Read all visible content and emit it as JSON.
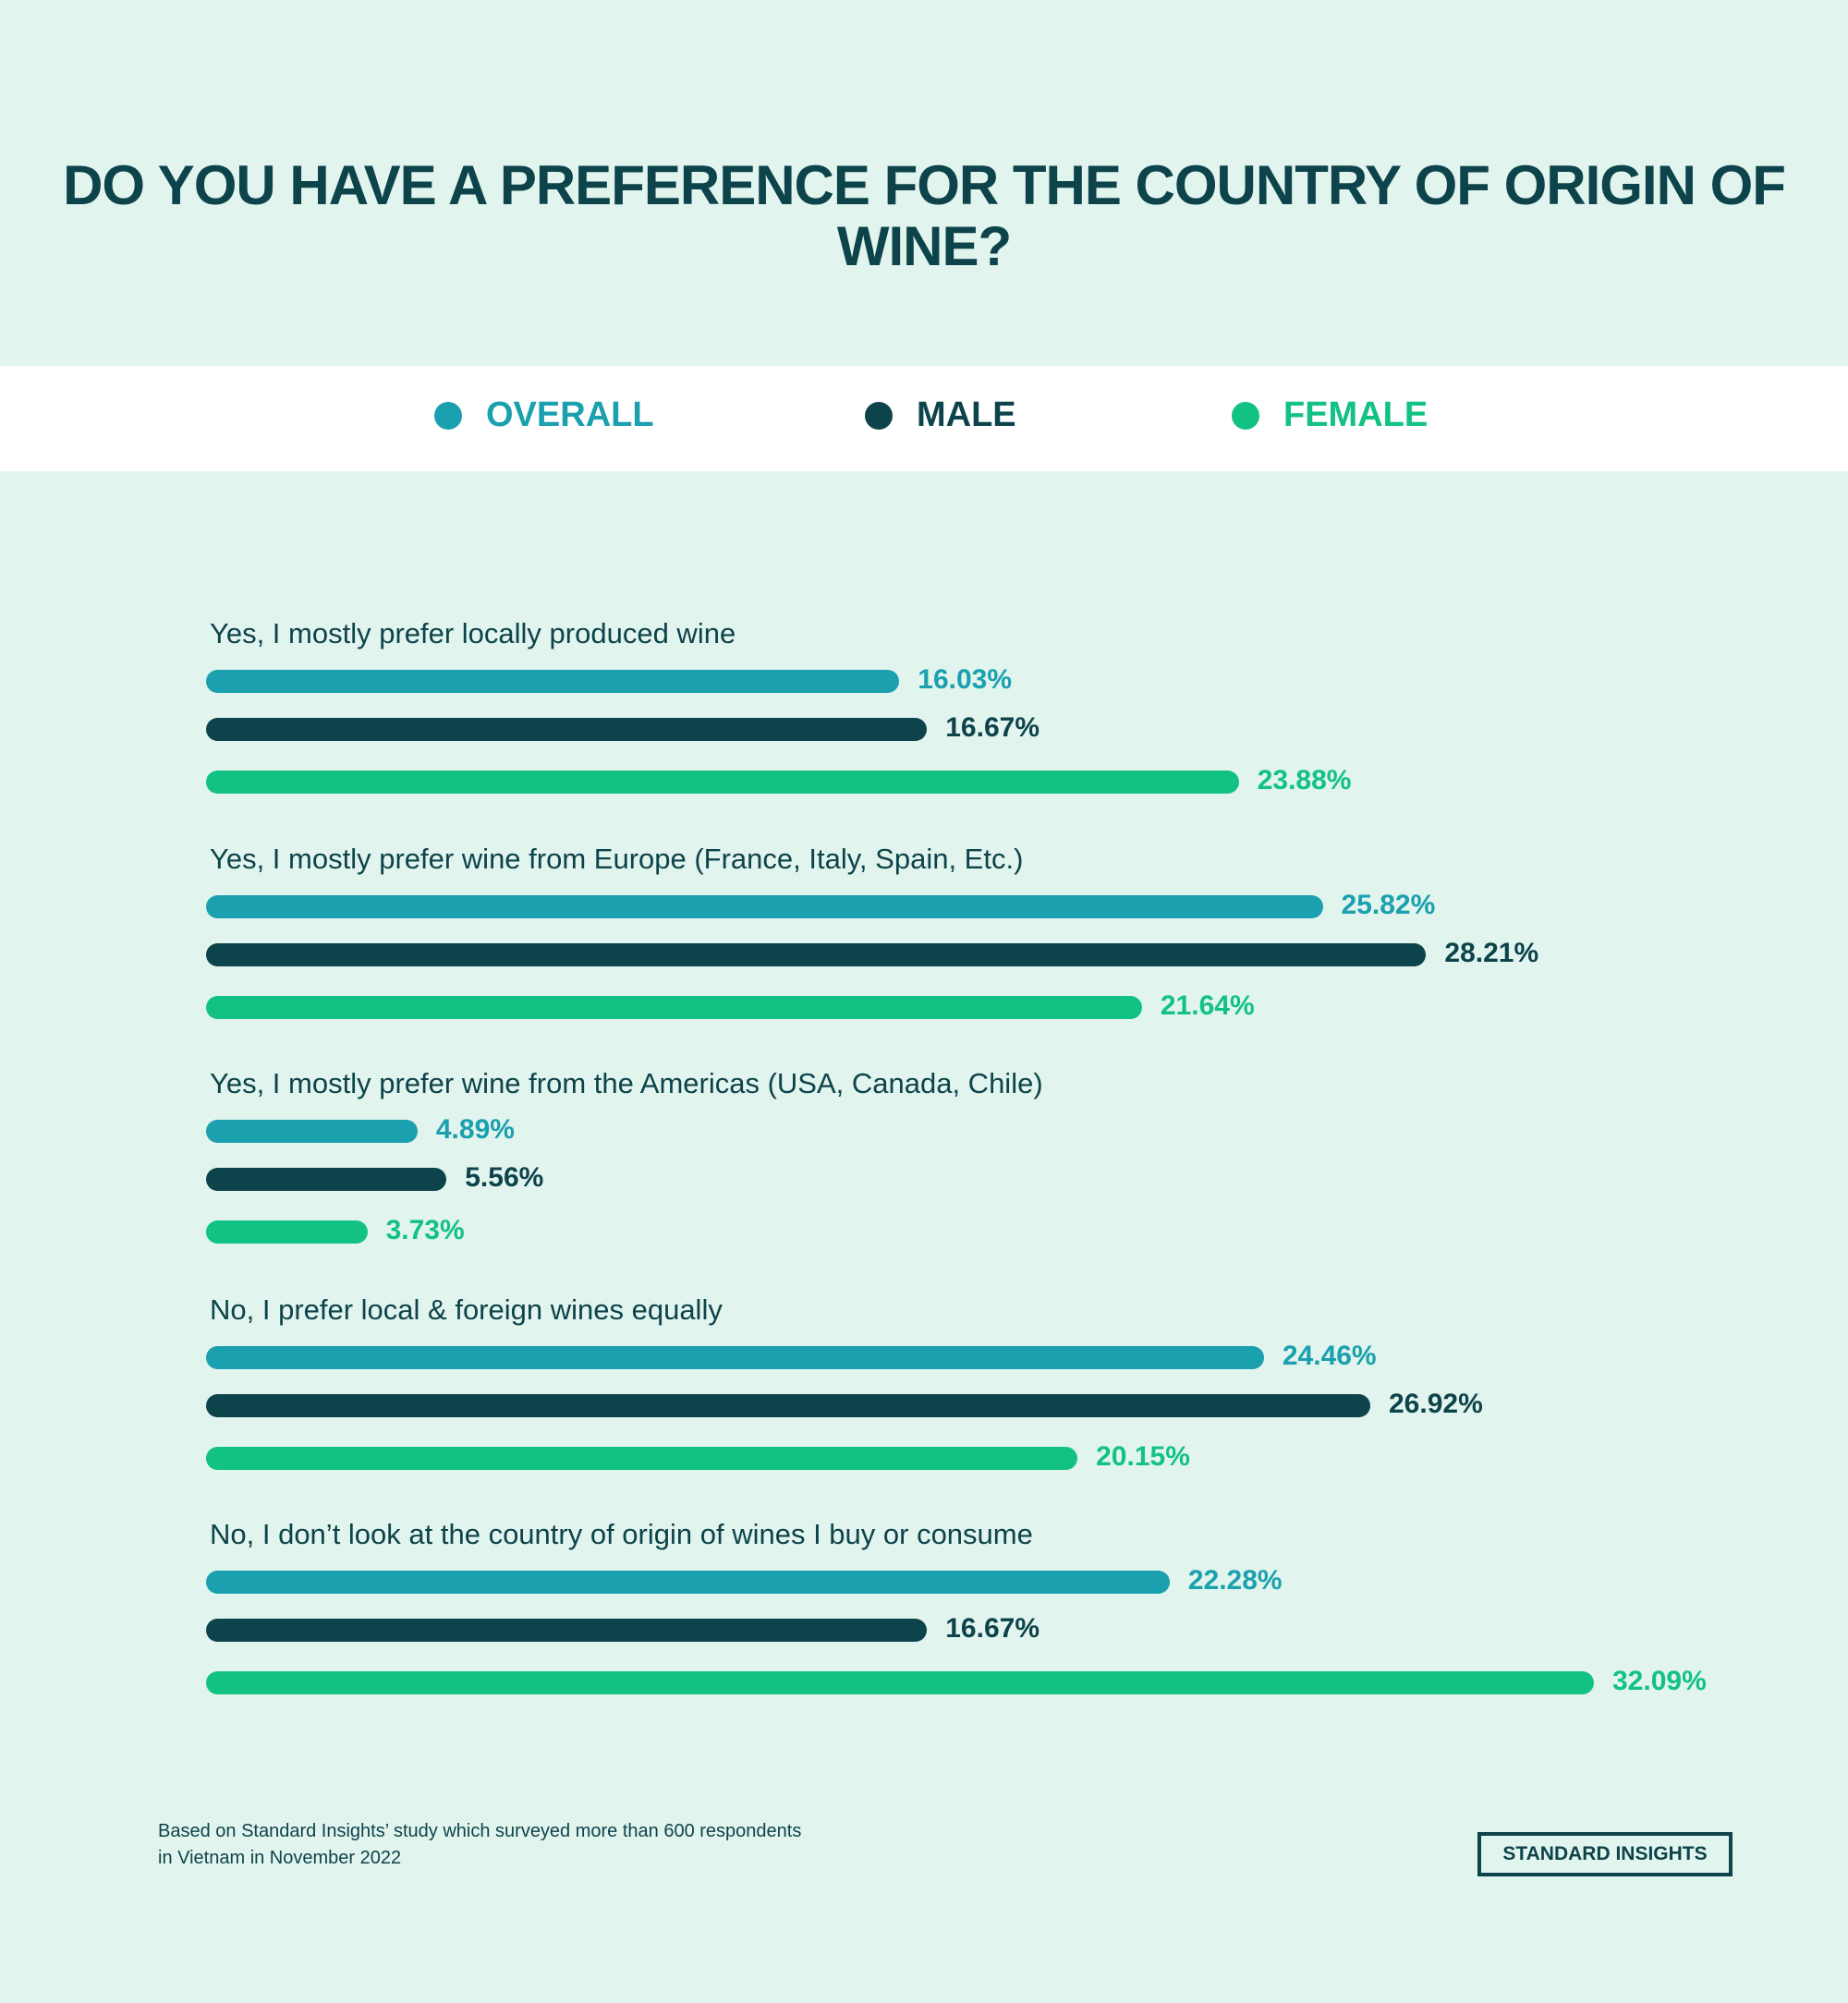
{
  "chart_data": {
    "type": "bar",
    "orientation": "horizontal",
    "title": "DO YOU HAVE A PREFERENCE FOR THE COUNTRY OF ORIGIN OF WINE?",
    "categories": [
      "Yes, I mostly prefer locally produced wine",
      "Yes, I mostly prefer wine from Europe (France, Italy, Spain, Etc.)",
      "Yes, I mostly prefer wine from the Americas (USA, Canada, Chile)",
      "No, I prefer local & foreign wines equally",
      "No, I don’t look at the country of origin of wines I buy or consume"
    ],
    "series": [
      {
        "name": "OVERALL",
        "color": "#1aa0ae",
        "values": [
          16.03,
          25.82,
          4.89,
          24.46,
          22.28
        ],
        "labels": [
          "16.03%",
          "25.82%",
          "4.89%",
          "24.46%",
          "22.28%"
        ]
      },
      {
        "name": "MALE",
        "color": "#0d434a",
        "values": [
          16.67,
          28.21,
          5.56,
          26.92,
          16.67
        ],
        "labels": [
          "16.67%",
          "28.21%",
          "5.56%",
          "26.92%",
          "16.67%"
        ]
      },
      {
        "name": "FEMALE",
        "color": "#12c283",
        "values": [
          23.88,
          21.64,
          3.73,
          20.15,
          32.09
        ],
        "labels": [
          "23.88%",
          "21.64%",
          "3.73%",
          "20.15%",
          "32.09%"
        ]
      }
    ],
    "unit": "%",
    "legend_position": "top",
    "grid": false
  },
  "footnote": {
    "line1": "Based on Standard Insights’ study which surveyed more than 600 respondents",
    "line2": "in Vietnam in November 2022"
  },
  "logo": "STANDARD INSIGHTS"
}
